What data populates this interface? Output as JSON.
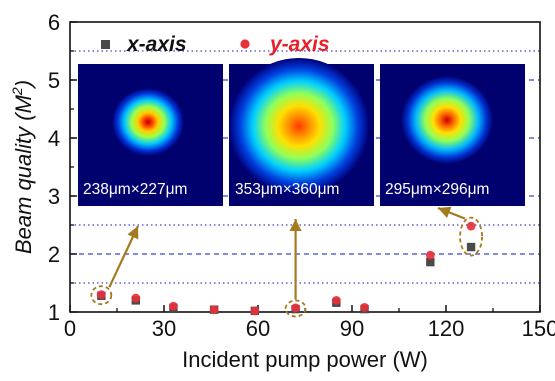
{
  "chart_data": {
    "type": "scatter",
    "xlabel": "Incident pump power (W)",
    "ylabel_main": "Beam quality (",
    "ylabel_sym": "M",
    "ylabel_sup": "2",
    "ylabel_close": ")",
    "xlim": [
      0,
      150
    ],
    "ylim": [
      1,
      6
    ],
    "xticks": [
      "0",
      "30",
      "60",
      "90",
      "120",
      "150"
    ],
    "yticks": [
      "1",
      "2",
      "3",
      "4",
      "5",
      "6"
    ],
    "grid": {
      "dashed_y": [
        2,
        3,
        4,
        5
      ],
      "dotted_y": [
        1.5,
        2.5,
        5.5
      ],
      "dash_color": "#3b44d0"
    },
    "legend_position": "top",
    "series": [
      {
        "name": "x-axis",
        "color": "#4a4a4a",
        "marker": "square",
        "x": [
          10,
          21,
          33,
          46,
          59,
          72,
          85,
          94,
          115,
          128
        ],
        "y": [
          1.28,
          1.2,
          1.07,
          1.04,
          1.02,
          1.05,
          1.16,
          1.05,
          1.86,
          2.12
        ]
      },
      {
        "name": "y-axis",
        "color": "#e8303a",
        "marker": "circle",
        "x": [
          10,
          21,
          33,
          46,
          59,
          72,
          85,
          94,
          115,
          128
        ],
        "y": [
          1.3,
          1.24,
          1.1,
          1.04,
          1.02,
          1.07,
          1.2,
          1.08,
          1.98,
          2.48
        ]
      }
    ],
    "highlight_points": [
      {
        "x": 10,
        "y": 1.29
      },
      {
        "x": 72,
        "y": 1.06
      },
      {
        "x": 128,
        "y": 2.3
      }
    ],
    "insets": [
      {
        "label": "238μm×227μm",
        "spot": "small"
      },
      {
        "label": "353μm×360μm",
        "spot": "large"
      },
      {
        "label": "295μm×296μm",
        "spot": "medium"
      }
    ],
    "arrow_color": "#a57a1e"
  }
}
